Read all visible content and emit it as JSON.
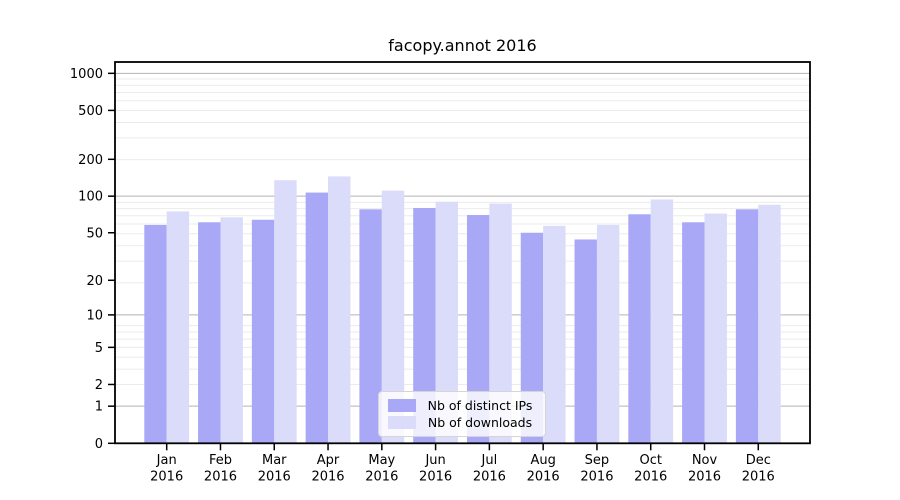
{
  "title": "facopy.annot 2016",
  "colors": {
    "ips": "#a8a8f6",
    "downloads": "#dbdbfa",
    "grid_major": "#b3b3b3",
    "grid_minor": "#ebebeb",
    "spine": "#000000",
    "tick_text": "#000000"
  },
  "legend": {
    "items": [
      {
        "label": "Nb of distinct IPs",
        "series": "ips"
      },
      {
        "label": "Nb of downloads",
        "series": "downloads"
      }
    ]
  },
  "chart_data": {
    "type": "bar",
    "title": "facopy.annot 2016",
    "categories": [
      "Jan",
      "Feb",
      "Mar",
      "Apr",
      "May",
      "Jun",
      "Jul",
      "Aug",
      "Sep",
      "Oct",
      "Nov",
      "Dec"
    ],
    "category_year": "2016",
    "series": [
      {
        "name": "Nb of distinct IPs",
        "key": "ips",
        "values": [
          58,
          61,
          64,
          107,
          78,
          80,
          70,
          50,
          44,
          71,
          61,
          78
        ]
      },
      {
        "name": "Nb of downloads",
        "key": "downloads",
        "values": [
          75,
          67,
          135,
          145,
          111,
          90,
          87,
          57,
          58,
          94,
          72,
          85
        ]
      }
    ],
    "y_scale": "log1p",
    "y_ticks": [
      0,
      1,
      2,
      5,
      10,
      20,
      50,
      100,
      200,
      500,
      1000
    ],
    "y_major_gridlines": [
      1,
      10,
      100,
      1000
    ],
    "ylim": [
      0,
      1236
    ],
    "xlabel": "",
    "ylabel": "",
    "grid": true,
    "legend_position": "lower center"
  }
}
